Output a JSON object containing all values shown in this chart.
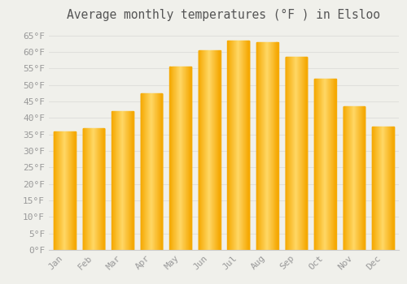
{
  "title": "Average monthly temperatures (°F ) in Elsloo",
  "months": [
    "Jan",
    "Feb",
    "Mar",
    "Apr",
    "May",
    "Jun",
    "Jul",
    "Aug",
    "Sep",
    "Oct",
    "Nov",
    "Dec"
  ],
  "values": [
    36,
    37,
    42,
    47.5,
    55.5,
    60.5,
    63.5,
    63,
    58.5,
    52,
    43.5,
    37.5
  ],
  "bar_color_outer": "#F5A800",
  "bar_color_inner": "#FFD966",
  "ylim": [
    0,
    68
  ],
  "yticks": [
    0,
    5,
    10,
    15,
    20,
    25,
    30,
    35,
    40,
    45,
    50,
    55,
    60,
    65
  ],
  "background_color": "#f0f0eb",
  "plot_bg_color": "#f0f0eb",
  "grid_color": "#e0e0dc",
  "title_fontsize": 10.5,
  "tick_fontsize": 8,
  "tick_color": "#999999"
}
